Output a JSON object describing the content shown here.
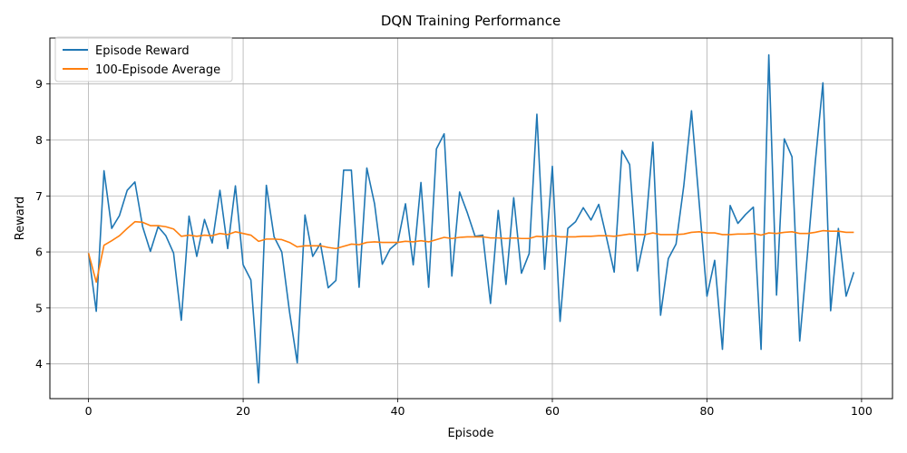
{
  "chart_data": {
    "type": "line",
    "title": "DQN Training Performance",
    "xlabel": "Episode",
    "ylabel": "Reward",
    "xlim": [
      -5,
      104
    ],
    "ylim": [
      3.38,
      9.82
    ],
    "xticks": [
      0,
      20,
      40,
      60,
      80,
      100
    ],
    "yticks": [
      4,
      5,
      6,
      7,
      8,
      9
    ],
    "grid": true,
    "legend_position": "upper-left",
    "series": [
      {
        "name": "Episode Reward",
        "color": "#1f77b4",
        "values": [
          5.98,
          4.94,
          7.45,
          6.42,
          6.65,
          7.1,
          7.25,
          6.45,
          6.01,
          6.45,
          6.29,
          5.98,
          4.78,
          6.64,
          5.92,
          6.58,
          6.16,
          7.1,
          6.06,
          7.18,
          5.77,
          5.5,
          3.66,
          7.19,
          6.27,
          6.0,
          4.93,
          4.02,
          6.66,
          5.92,
          6.15,
          5.36,
          5.49,
          7.46,
          7.46,
          5.37,
          7.5,
          6.86,
          5.78,
          6.05,
          6.17,
          6.86,
          5.77,
          7.24,
          5.37,
          7.84,
          8.11,
          5.57,
          7.07,
          6.7,
          6.28,
          6.3,
          5.08,
          6.74,
          5.42,
          6.97,
          5.62,
          5.97,
          8.46,
          5.69,
          7.53,
          4.76,
          6.42,
          6.54,
          6.79,
          6.57,
          6.85,
          6.26,
          5.64,
          7.81,
          7.56,
          5.66,
          6.32,
          7.96,
          4.87,
          5.88,
          6.14,
          7.18,
          8.52,
          6.87,
          5.21,
          5.85,
          4.26,
          6.83,
          6.51,
          6.67,
          6.8,
          4.26,
          9.52,
          5.23,
          8.02,
          7.7,
          4.41,
          5.97,
          7.59,
          9.02,
          4.95,
          6.42,
          5.21,
          5.64
        ]
      },
      {
        "name": "100-Episode Average",
        "color": "#ff7f0e",
        "values": [
          5.98,
          5.46,
          6.12,
          6.2,
          6.29,
          6.42,
          6.54,
          6.53,
          6.47,
          6.47,
          6.45,
          6.41,
          6.28,
          6.3,
          6.28,
          6.3,
          6.29,
          6.33,
          6.31,
          6.36,
          6.33,
          6.3,
          6.19,
          6.23,
          6.23,
          6.22,
          6.17,
          6.09,
          6.11,
          6.11,
          6.11,
          6.08,
          6.06,
          6.1,
          6.14,
          6.13,
          6.17,
          6.18,
          6.17,
          6.17,
          6.17,
          6.19,
          6.18,
          6.2,
          6.18,
          6.22,
          6.26,
          6.24,
          6.26,
          6.27,
          6.27,
          6.27,
          6.25,
          6.25,
          6.24,
          6.25,
          6.24,
          6.24,
          6.28,
          6.27,
          6.29,
          6.27,
          6.27,
          6.27,
          6.28,
          6.28,
          6.29,
          6.29,
          6.28,
          6.3,
          6.32,
          6.31,
          6.31,
          6.34,
          6.31,
          6.31,
          6.31,
          6.32,
          6.35,
          6.36,
          6.34,
          6.34,
          6.31,
          6.31,
          6.32,
          6.32,
          6.33,
          6.3,
          6.34,
          6.33,
          6.35,
          6.36,
          6.33,
          6.33,
          6.35,
          6.38,
          6.37,
          6.37,
          6.35,
          6.35
        ]
      }
    ]
  }
}
